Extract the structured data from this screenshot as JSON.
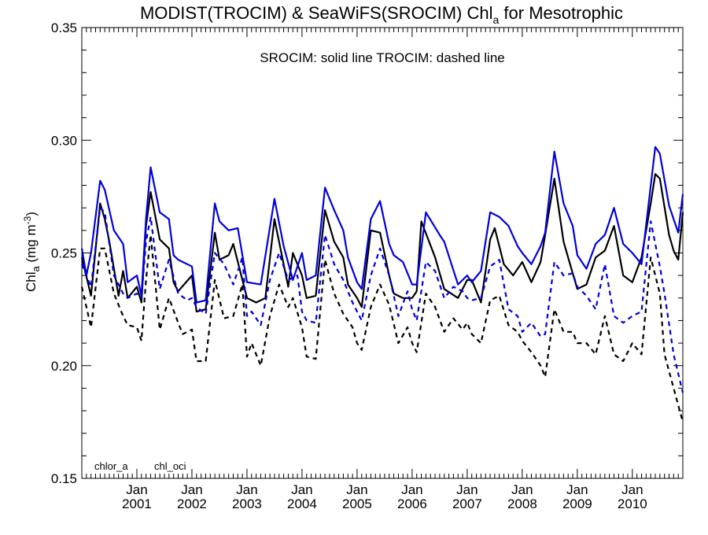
{
  "chart_data": {
    "type": "line",
    "title": "MODIST(TROCIM) & SeaWiFS(SROCIM)  Chl",
    "title_sub": "a",
    "title_rest": " for Mesotrophic",
    "annotation": "SROCIM: solid line   TROCIM: dashed line",
    "ylabel": "Chl",
    "ylabel_sub": "a",
    "ylabel_unit": " (mg m",
    "ylabel_sup": "-3",
    "ylabel_close": ")",
    "ylim": [
      0.15,
      0.35
    ],
    "yticks": [
      0.15,
      0.2,
      0.25,
      0.3,
      0.35
    ],
    "ytick_labels": [
      "0.15",
      "0.20",
      "0.25",
      "0.30",
      "0.35"
    ],
    "xlim": [
      "2000-01",
      "2010-12"
    ],
    "xticks": [
      "2001-01",
      "2002-01",
      "2003-01",
      "2004-01",
      "2005-01",
      "2006-01",
      "2007-01",
      "2008-01",
      "2009-01",
      "2010-01"
    ],
    "xtick_month_label": "Jan",
    "xtick_year_labels": [
      "2001",
      "2002",
      "2003",
      "2004",
      "2005",
      "2006",
      "2007",
      "2008",
      "2009",
      "2010"
    ],
    "grid": false,
    "legend": [
      {
        "label": "chlor_a",
        "color": "#000000"
      },
      {
        "label": "chl_oci",
        "color": "#0000dd"
      }
    ],
    "series": [
      {
        "variable": "chlor_a",
        "line": "solid",
        "color": "#000000",
        "x": [
          "2000-01",
          "2000-03",
          "2000-05",
          "2000-06",
          "2000-07",
          "2000-09",
          "2000-10",
          "2000-11",
          "2001-01",
          "2001-02",
          "2001-03",
          "2001-04",
          "2001-06",
          "2001-08",
          "2001-09",
          "2001-10",
          "2002-01",
          "2002-02",
          "2002-04",
          "2002-06",
          "2002-07",
          "2002-09",
          "2002-10",
          "2003-01",
          "2003-03",
          "2003-05",
          "2003-07",
          "2003-10",
          "2003-11",
          "2004-01",
          "2004-02",
          "2004-04",
          "2004-06",
          "2004-08",
          "2004-10",
          "2004-11",
          "2005-01",
          "2005-02",
          "2005-04",
          "2005-06",
          "2005-08",
          "2005-09",
          "2005-11",
          "2006-01",
          "2006-02",
          "2006-03",
          "2006-06",
          "2006-08",
          "2006-11",
          "2007-01",
          "2007-02",
          "2007-04",
          "2007-06",
          "2007-07",
          "2007-09",
          "2007-11",
          "2008-01",
          "2008-03",
          "2008-05",
          "2008-06",
          "2008-08",
          "2008-10",
          "2008-12",
          "2009-01",
          "2009-03",
          "2009-05",
          "2009-07",
          "2009-09",
          "2009-11",
          "2010-01",
          "2010-03",
          "2010-05",
          "2010-06",
          "2010-07",
          "2010-09",
          "2010-10",
          "2010-11",
          "2010-12"
        ],
        "y": [
          0.248,
          0.231,
          0.272,
          0.265,
          0.255,
          0.231,
          0.242,
          0.23,
          0.235,
          0.228,
          0.262,
          0.277,
          0.256,
          0.252,
          0.237,
          0.233,
          0.24,
          0.224,
          0.225,
          0.259,
          0.247,
          0.249,
          0.254,
          0.23,
          0.228,
          0.23,
          0.265,
          0.235,
          0.25,
          0.24,
          0.23,
          0.231,
          0.269,
          0.255,
          0.248,
          0.236,
          0.23,
          0.226,
          0.26,
          0.259,
          0.24,
          0.232,
          0.23,
          0.23,
          0.233,
          0.264,
          0.248,
          0.234,
          0.23,
          0.238,
          0.238,
          0.228,
          0.256,
          0.261,
          0.245,
          0.24,
          0.246,
          0.237,
          0.246,
          0.258,
          0.283,
          0.255,
          0.241,
          0.234,
          0.236,
          0.248,
          0.251,
          0.262,
          0.24,
          0.237,
          0.248,
          0.272,
          0.285,
          0.283,
          0.258,
          0.251,
          0.247,
          0.268
        ]
      },
      {
        "variable": "chl_oci",
        "line": "solid",
        "color": "#0000dd",
        "x": [
          "2000-01",
          "2000-02",
          "2000-03",
          "2000-05",
          "2000-06",
          "2000-08",
          "2000-10",
          "2000-11",
          "2001-01",
          "2001-02",
          "2001-03",
          "2001-04",
          "2001-06",
          "2001-08",
          "2001-09",
          "2001-10",
          "2002-01",
          "2002-02",
          "2002-04",
          "2002-06",
          "2002-07",
          "2002-09",
          "2002-11",
          "2003-01",
          "2003-04",
          "2003-07",
          "2003-09",
          "2003-11",
          "2004-01",
          "2004-02",
          "2004-04",
          "2004-06",
          "2004-08",
          "2004-10",
          "2004-11",
          "2005-01",
          "2005-02",
          "2005-04",
          "2005-06",
          "2005-08",
          "2005-09",
          "2005-11",
          "2006-01",
          "2006-02",
          "2006-04",
          "2006-07",
          "2006-08",
          "2006-11",
          "2007-01",
          "2007-02",
          "2007-04",
          "2007-06",
          "2007-08",
          "2007-10",
          "2007-12",
          "2008-01",
          "2008-03",
          "2008-05",
          "2008-06",
          "2008-08",
          "2008-10",
          "2008-12",
          "2009-01",
          "2009-03",
          "2009-05",
          "2009-07",
          "2009-09",
          "2009-11",
          "2010-01",
          "2010-03",
          "2010-06",
          "2010-07",
          "2010-09",
          "2010-10",
          "2010-11",
          "2010-12"
        ],
        "y": [
          0.252,
          0.24,
          0.25,
          0.282,
          0.278,
          0.26,
          0.254,
          0.237,
          0.24,
          0.231,
          0.265,
          0.288,
          0.268,
          0.265,
          0.249,
          0.247,
          0.244,
          0.228,
          0.229,
          0.272,
          0.264,
          0.26,
          0.261,
          0.237,
          0.236,
          0.274,
          0.253,
          0.238,
          0.25,
          0.238,
          0.24,
          0.279,
          0.269,
          0.26,
          0.248,
          0.237,
          0.234,
          0.265,
          0.273,
          0.254,
          0.249,
          0.246,
          0.236,
          0.236,
          0.268,
          0.258,
          0.255,
          0.236,
          0.24,
          0.237,
          0.242,
          0.268,
          0.266,
          0.262,
          0.253,
          0.25,
          0.245,
          0.253,
          0.259,
          0.295,
          0.272,
          0.262,
          0.249,
          0.243,
          0.254,
          0.258,
          0.27,
          0.254,
          0.25,
          0.245,
          0.297,
          0.294,
          0.271,
          0.265,
          0.259,
          0.276
        ]
      },
      {
        "variable": "chlor_a",
        "line": "dashed",
        "color": "#000000",
        "x": [
          "2000-01",
          "2000-03",
          "2000-05",
          "2000-06",
          "2000-08",
          "2000-10",
          "2000-11",
          "2001-01",
          "2001-02",
          "2001-03",
          "2001-04",
          "2001-06",
          "2001-08",
          "2001-10",
          "2001-11",
          "2002-01",
          "2002-02",
          "2002-04",
          "2002-06",
          "2002-08",
          "2002-10",
          "2002-12",
          "2003-01",
          "2003-02",
          "2003-04",
          "2003-06",
          "2003-08",
          "2003-10",
          "2003-11",
          "2004-01",
          "2004-02",
          "2004-04",
          "2004-06",
          "2004-08",
          "2004-10",
          "2004-12",
          "2005-01",
          "2005-02",
          "2005-04",
          "2005-06",
          "2005-08",
          "2005-10",
          "2005-12",
          "2006-01",
          "2006-02",
          "2006-04",
          "2006-06",
          "2006-08",
          "2006-10",
          "2006-12",
          "2007-01",
          "2007-02",
          "2007-04",
          "2007-06",
          "2007-08",
          "2007-10",
          "2007-12",
          "2008-01",
          "2008-03",
          "2008-05",
          "2008-06",
          "2008-08",
          "2008-10",
          "2008-12",
          "2009-01",
          "2009-03",
          "2009-05",
          "2009-07",
          "2009-09",
          "2009-11",
          "2010-01",
          "2010-03",
          "2010-05",
          "2010-07",
          "2010-08",
          "2010-10",
          "2010-12"
        ],
        "y": [
          0.235,
          0.217,
          0.252,
          0.252,
          0.232,
          0.222,
          0.218,
          0.217,
          0.211,
          0.238,
          0.258,
          0.216,
          0.23,
          0.219,
          0.214,
          0.216,
          0.202,
          0.202,
          0.238,
          0.221,
          0.222,
          0.236,
          0.204,
          0.21,
          0.2,
          0.222,
          0.236,
          0.226,
          0.23,
          0.217,
          0.204,
          0.203,
          0.247,
          0.232,
          0.223,
          0.217,
          0.21,
          0.207,
          0.226,
          0.236,
          0.227,
          0.21,
          0.217,
          0.21,
          0.206,
          0.232,
          0.226,
          0.215,
          0.221,
          0.216,
          0.219,
          0.214,
          0.21,
          0.229,
          0.231,
          0.218,
          0.215,
          0.211,
          0.206,
          0.2,
          0.195,
          0.225,
          0.215,
          0.215,
          0.21,
          0.21,
          0.205,
          0.222,
          0.205,
          0.202,
          0.21,
          0.205,
          0.248,
          0.232,
          0.205,
          0.19,
          0.175
        ]
      },
      {
        "variable": "chl_oci",
        "line": "dashed",
        "color": "#0000dd",
        "x": [
          "2000-01",
          "2000-03",
          "2000-05",
          "2000-06",
          "2000-08",
          "2000-10",
          "2000-11",
          "2001-01",
          "2001-02",
          "2001-03",
          "2001-04",
          "2001-06",
          "2001-08",
          "2001-10",
          "2001-12",
          "2002-01",
          "2002-02",
          "2002-04",
          "2002-06",
          "2002-08",
          "2002-10",
          "2002-12",
          "2003-01",
          "2003-02",
          "2003-04",
          "2003-06",
          "2003-08",
          "2003-10",
          "2003-12",
          "2004-01",
          "2004-02",
          "2004-04",
          "2004-06",
          "2004-08",
          "2004-10",
          "2004-12",
          "2005-01",
          "2005-02",
          "2005-04",
          "2005-06",
          "2005-08",
          "2005-10",
          "2005-12",
          "2006-01",
          "2006-02",
          "2006-04",
          "2006-06",
          "2006-08",
          "2006-10",
          "2006-12",
          "2007-01",
          "2007-02",
          "2007-04",
          "2007-06",
          "2007-08",
          "2007-10",
          "2007-12",
          "2008-01",
          "2008-03",
          "2008-05",
          "2008-06",
          "2008-08",
          "2008-10",
          "2008-12",
          "2009-01",
          "2009-03",
          "2009-05",
          "2009-07",
          "2009-09",
          "2009-11",
          "2010-01",
          "2010-03",
          "2010-05",
          "2010-07",
          "2010-08",
          "2010-10",
          "2010-12"
        ],
        "y": [
          0.245,
          0.235,
          0.27,
          0.268,
          0.24,
          0.232,
          0.23,
          0.232,
          0.23,
          0.255,
          0.266,
          0.234,
          0.247,
          0.232,
          0.229,
          0.23,
          0.226,
          0.223,
          0.25,
          0.245,
          0.236,
          0.248,
          0.222,
          0.224,
          0.218,
          0.238,
          0.25,
          0.238,
          0.24,
          0.224,
          0.22,
          0.219,
          0.258,
          0.245,
          0.238,
          0.228,
          0.224,
          0.22,
          0.24,
          0.252,
          0.24,
          0.222,
          0.233,
          0.225,
          0.22,
          0.246,
          0.242,
          0.23,
          0.235,
          0.233,
          0.23,
          0.229,
          0.23,
          0.244,
          0.247,
          0.225,
          0.222,
          0.215,
          0.219,
          0.213,
          0.214,
          0.246,
          0.24,
          0.241,
          0.235,
          0.231,
          0.225,
          0.245,
          0.222,
          0.219,
          0.222,
          0.224,
          0.264,
          0.244,
          0.232,
          0.205,
          0.188
        ]
      }
    ]
  }
}
